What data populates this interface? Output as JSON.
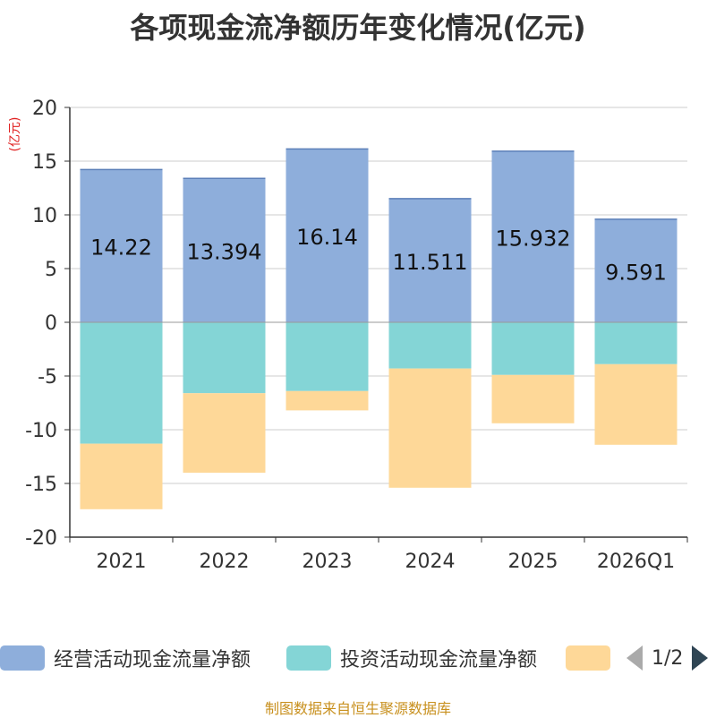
{
  "chart_data": {
    "type": "bar",
    "stacked": true,
    "title": "各项现金流净额历年变化情况(亿元)",
    "ylabel": "(亿元)",
    "ylim": [
      -20,
      20
    ],
    "yticks": [
      20,
      15,
      10,
      5,
      0,
      -5,
      -10,
      -15,
      -20
    ],
    "categories": [
      "2021",
      "2022",
      "2023",
      "2024",
      "2025",
      "2026Q1"
    ],
    "series": [
      {
        "name": "经营活动现金流量净额",
        "color": "#8eaedb",
        "values": [
          14.22,
          13.394,
          16.14,
          11.511,
          15.932,
          9.591
        ],
        "labels": [
          "14.22",
          "13.394",
          "16.14",
          "11.511",
          "15.932",
          "9.591"
        ]
      },
      {
        "name": "投资活动现金流量净额",
        "color": "#84d5d6",
        "values": [
          -11.3,
          -6.6,
          -6.4,
          -4.3,
          -4.9,
          -3.9
        ]
      },
      {
        "name": "",
        "color": "#fed898",
        "values": [
          -6.1,
          -7.4,
          -1.8,
          -11.1,
          -4.5,
          -7.5
        ]
      }
    ]
  },
  "legend": {
    "page_indicator": "1/2"
  },
  "source": "制图数据来自恒生聚源数据库"
}
